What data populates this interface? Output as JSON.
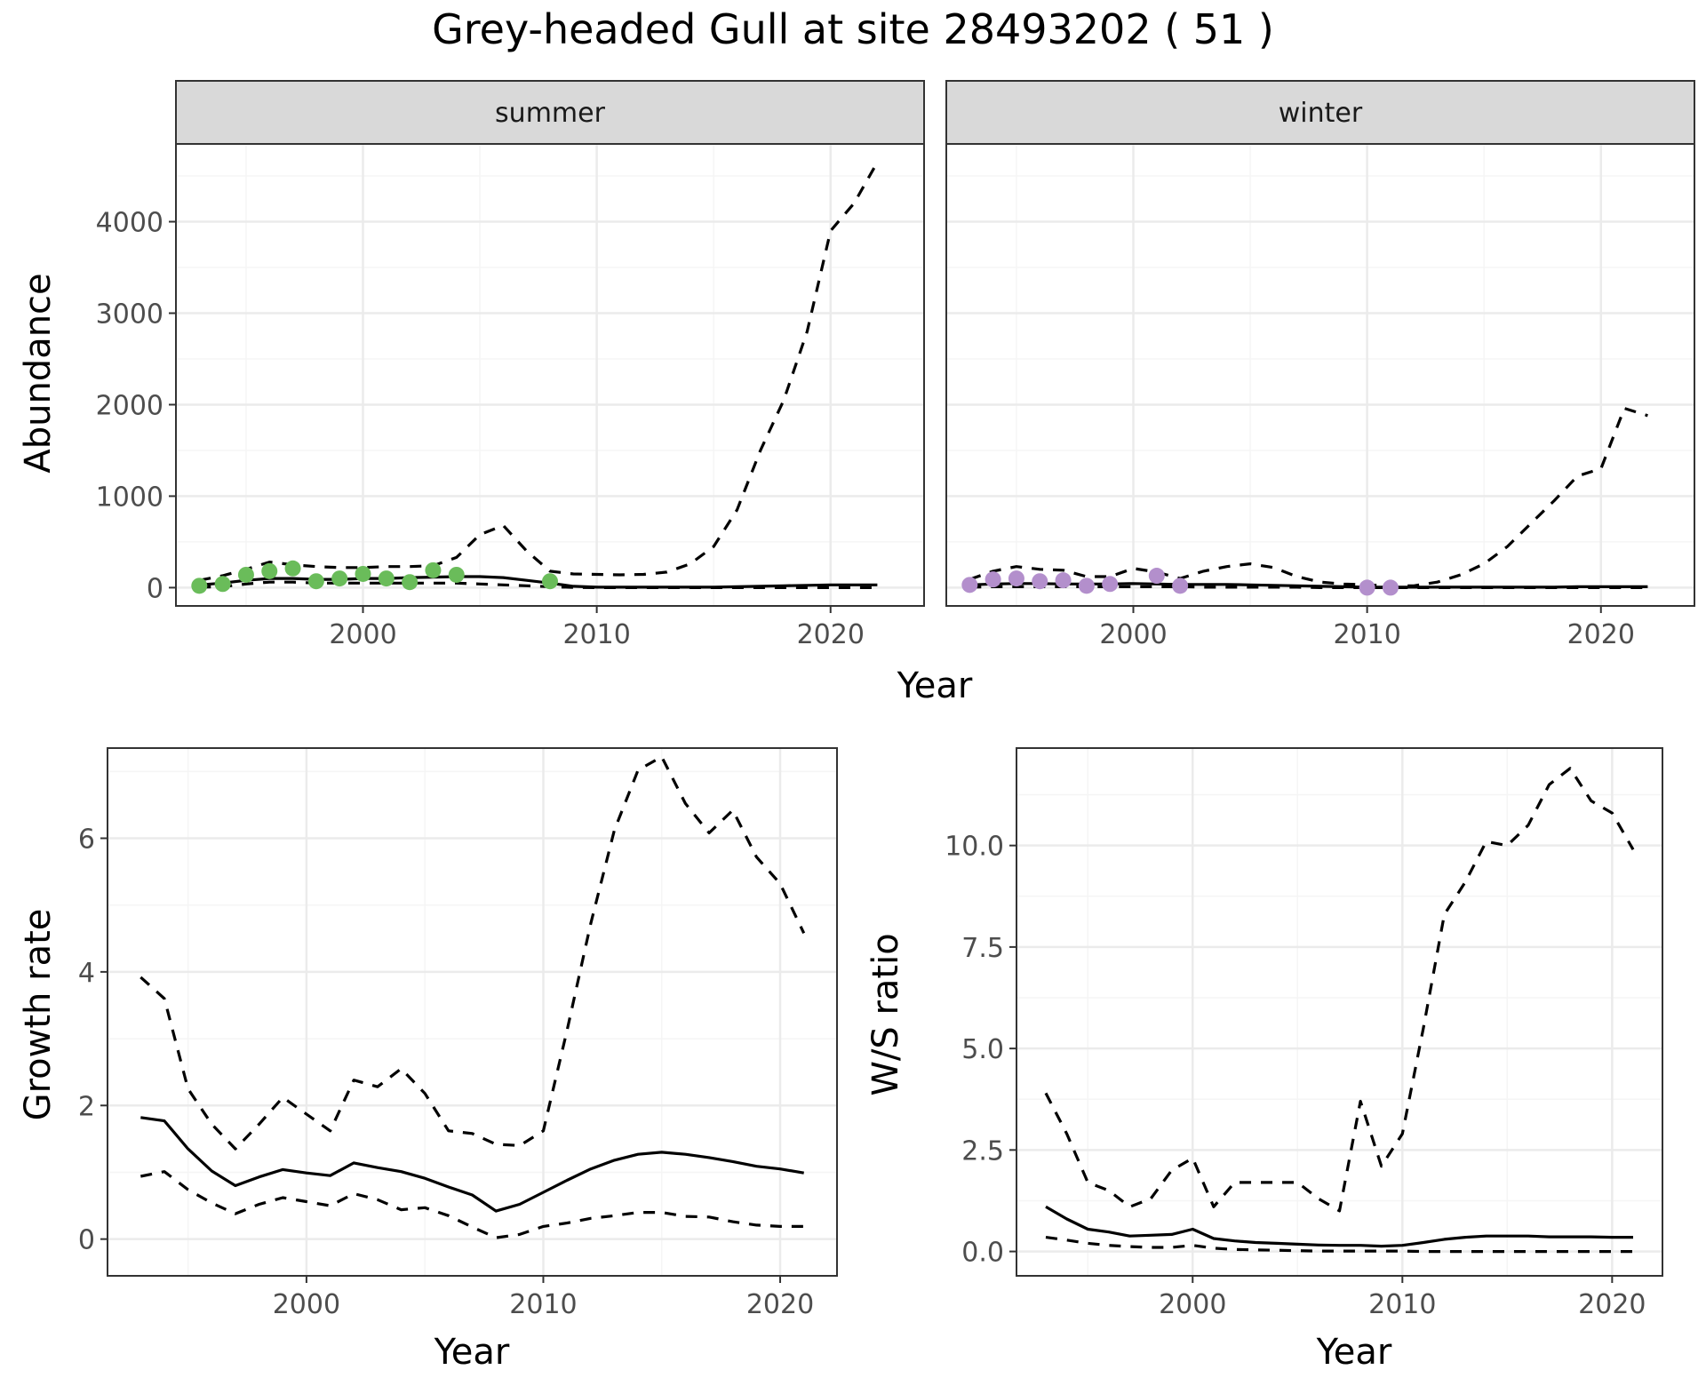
{
  "title": "Grey-headed Gull at site 28493202 ( 51 )",
  "colors": {
    "summer_points": "#6abc5a",
    "winter_points": "#b38fcc",
    "line": "#000000",
    "strip_bg": "#d9d9d9",
    "grid_major": "#ebebeb",
    "grid_minor": "#f5f5f5"
  },
  "chart_data": [
    {
      "type": "line",
      "panel": "summer",
      "strip_label": "summer",
      "ylabel": "Abundance",
      "xlabel": "Year",
      "xlim": [
        1992,
        2024
      ],
      "ylim": [
        -200,
        4850
      ],
      "xticks": [
        2000,
        2010,
        2020
      ],
      "yticks": [
        0,
        1000,
        2000,
        3000,
        4000
      ],
      "grid": true,
      "series": [
        {
          "role": "estimate",
          "style": "solid",
          "x": [
            1993,
            1994,
            1995,
            1996,
            1997,
            1998,
            1999,
            2000,
            2001,
            2002,
            2003,
            2004,
            2005,
            2006,
            2007,
            2008,
            2009,
            2010,
            2011,
            2012,
            2013,
            2014,
            2015,
            2016,
            2017,
            2018,
            2019,
            2020,
            2021,
            2022
          ],
          "y": [
            30,
            50,
            80,
            100,
            100,
            90,
            90,
            100,
            100,
            110,
            115,
            120,
            120,
            110,
            80,
            50,
            15,
            5,
            5,
            5,
            5,
            5,
            5,
            10,
            15,
            20,
            25,
            30,
            30,
            30
          ]
        },
        {
          "role": "upper",
          "style": "dashed",
          "x": [
            1993,
            1994,
            1995,
            1996,
            1997,
            1998,
            1999,
            2000,
            2001,
            2002,
            2003,
            2004,
            2005,
            2006,
            2007,
            2008,
            2009,
            2010,
            2011,
            2012,
            2013,
            2014,
            2015,
            2016,
            2017,
            2018,
            2019,
            2020,
            2021,
            2022
          ],
          "y": [
            80,
            130,
            200,
            280,
            250,
            230,
            220,
            220,
            230,
            230,
            240,
            330,
            580,
            680,
            400,
            180,
            150,
            145,
            140,
            145,
            170,
            260,
            450,
            850,
            1500,
            2050,
            2800,
            3900,
            4200,
            4650
          ]
        },
        {
          "role": "lower",
          "style": "dashed",
          "x": [
            1993,
            1994,
            1995,
            1996,
            1997,
            1998,
            1999,
            2000,
            2001,
            2002,
            2003,
            2004,
            2005,
            2006,
            2007,
            2008,
            2009,
            2010,
            2011,
            2012,
            2013,
            2014,
            2015,
            2016,
            2017,
            2018,
            2019,
            2020,
            2021,
            2022
          ],
          "y": [
            5,
            10,
            40,
            60,
            60,
            50,
            50,
            50,
            50,
            50,
            50,
            50,
            40,
            30,
            20,
            10,
            3,
            0,
            0,
            0,
            0,
            0,
            0,
            0,
            0,
            0,
            0,
            0,
            0,
            0
          ]
        },
        {
          "role": "observed",
          "style": "points",
          "x": [
            1993,
            1994,
            1995,
            1996,
            1997,
            1998,
            1999,
            2000,
            2001,
            2002,
            2003,
            2004,
            2008
          ],
          "y": [
            20,
            40,
            140,
            180,
            210,
            70,
            100,
            150,
            100,
            60,
            190,
            140,
            70
          ]
        }
      ]
    },
    {
      "type": "line",
      "panel": "winter",
      "strip_label": "winter",
      "ylabel": "",
      "xlabel": "Year",
      "xlim": [
        1992,
        2024
      ],
      "ylim": [
        -200,
        4850
      ],
      "xticks": [
        2000,
        2010,
        2020
      ],
      "yticks": [
        0,
        1000,
        2000,
        3000,
        4000
      ],
      "grid": true,
      "series": [
        {
          "role": "estimate",
          "style": "solid",
          "x": [
            1993,
            1994,
            1995,
            1996,
            1997,
            1998,
            1999,
            2000,
            2001,
            2002,
            2003,
            2004,
            2005,
            2006,
            2007,
            2008,
            2009,
            2010,
            2011,
            2012,
            2013,
            2014,
            2015,
            2016,
            2017,
            2018,
            2019,
            2020,
            2021,
            2022
          ],
          "y": [
            30,
            40,
            45,
            45,
            40,
            40,
            40,
            45,
            40,
            35,
            35,
            35,
            30,
            25,
            20,
            15,
            10,
            5,
            5,
            5,
            5,
            5,
            5,
            5,
            5,
            5,
            10,
            10,
            10,
            10
          ]
        },
        {
          "role": "upper",
          "style": "dashed",
          "x": [
            1993,
            1994,
            1995,
            1996,
            1997,
            1998,
            1999,
            2000,
            2001,
            2002,
            2003,
            2004,
            2005,
            2006,
            2007,
            2008,
            2009,
            2010,
            2011,
            2012,
            2013,
            2014,
            2015,
            2016,
            2017,
            2018,
            2019,
            2020,
            2021,
            2022
          ],
          "y": [
            90,
            180,
            230,
            200,
            190,
            120,
            120,
            210,
            170,
            100,
            180,
            230,
            260,
            220,
            120,
            60,
            40,
            30,
            20,
            20,
            60,
            140,
            260,
            450,
            700,
            950,
            1220,
            1300,
            1960,
            1880
          ]
        },
        {
          "role": "lower",
          "style": "dashed",
          "x": [
            1993,
            1994,
            1995,
            1996,
            1997,
            1998,
            1999,
            2000,
            2001,
            2002,
            2003,
            2004,
            2005,
            2006,
            2007,
            2008,
            2009,
            2010,
            2011,
            2012,
            2013,
            2014,
            2015,
            2016,
            2017,
            2018,
            2019,
            2020,
            2021,
            2022
          ],
          "y": [
            5,
            10,
            10,
            10,
            10,
            10,
            10,
            10,
            10,
            10,
            5,
            5,
            5,
            5,
            5,
            0,
            0,
            0,
            0,
            0,
            0,
            0,
            0,
            0,
            0,
            0,
            0,
            0,
            0,
            0
          ]
        },
        {
          "role": "observed",
          "style": "points",
          "x": [
            1993,
            1994,
            1995,
            1996,
            1997,
            1998,
            1999,
            2001,
            2002,
            2010,
            2011
          ],
          "y": [
            30,
            90,
            100,
            70,
            80,
            20,
            40,
            130,
            20,
            0,
            0
          ]
        }
      ]
    },
    {
      "type": "line",
      "panel": "growth",
      "ylabel": "Growth rate",
      "xlabel": "Year",
      "xlim": [
        1991.6,
        2022.4
      ],
      "ylim": [
        -0.55,
        7.35
      ],
      "xticks": [
        2000,
        2010,
        2020
      ],
      "yticks": [
        0,
        2,
        4,
        6
      ],
      "grid": true,
      "series": [
        {
          "role": "estimate",
          "style": "solid",
          "x": [
            1993,
            1994,
            1995,
            1996,
            1997,
            1998,
            1999,
            2000,
            2001,
            2002,
            2003,
            2004,
            2005,
            2006,
            2007,
            2008,
            2009,
            2010,
            2011,
            2012,
            2013,
            2014,
            2015,
            2016,
            2017,
            2018,
            2019,
            2020,
            2021
          ],
          "y": [
            1.82,
            1.77,
            1.35,
            1.02,
            0.8,
            0.93,
            1.04,
            0.99,
            0.95,
            1.14,
            1.07,
            1.01,
            0.91,
            0.78,
            0.66,
            0.42,
            0.52,
            0.7,
            0.88,
            1.05,
            1.18,
            1.27,
            1.3,
            1.27,
            1.22,
            1.16,
            1.09,
            1.05,
            0.99
          ]
        },
        {
          "role": "upper",
          "style": "dashed",
          "x": [
            1993,
            1994,
            1995,
            1996,
            1997,
            1998,
            1999,
            2000,
            2001,
            2002,
            2003,
            2004,
            2005,
            2006,
            2007,
            2008,
            2009,
            2010,
            2011,
            2012,
            2013,
            2014,
            2015,
            2016,
            2017,
            2018,
            2019,
            2020,
            2021
          ],
          "y": [
            3.92,
            3.6,
            2.25,
            1.72,
            1.35,
            1.72,
            2.12,
            1.87,
            1.62,
            2.38,
            2.28,
            2.55,
            2.18,
            1.62,
            1.58,
            1.42,
            1.4,
            1.62,
            3.12,
            4.72,
            6.12,
            7.02,
            7.22,
            6.52,
            6.08,
            6.42,
            5.72,
            5.32,
            4.58
          ]
        },
        {
          "role": "lower",
          "style": "dashed",
          "x": [
            1993,
            1994,
            1995,
            1996,
            1997,
            1998,
            1999,
            2000,
            2001,
            2002,
            2003,
            2004,
            2005,
            2006,
            2007,
            2008,
            2009,
            2010,
            2011,
            2012,
            2013,
            2014,
            2015,
            2016,
            2017,
            2018,
            2019,
            2020,
            2021
          ],
          "y": [
            0.94,
            1.01,
            0.74,
            0.54,
            0.38,
            0.52,
            0.62,
            0.56,
            0.5,
            0.68,
            0.59,
            0.44,
            0.47,
            0.35,
            0.18,
            0.02,
            0.07,
            0.19,
            0.24,
            0.31,
            0.35,
            0.4,
            0.4,
            0.34,
            0.33,
            0.26,
            0.21,
            0.19,
            0.19
          ]
        }
      ]
    },
    {
      "type": "line",
      "panel": "ws_ratio",
      "ylabel": "W/S ratio",
      "xlabel": "Year",
      "xlim": [
        1991.6,
        2022.4
      ],
      "ylim": [
        -0.6,
        12.4
      ],
      "xticks": [
        2000,
        2010,
        2020
      ],
      "yticks": [
        0.0,
        2.5,
        5.0,
        7.5,
        10.0
      ],
      "ytick_labels": [
        "0.0",
        "2.5",
        "5.0",
        "7.5",
        "10.0"
      ],
      "grid": true,
      "series": [
        {
          "role": "estimate",
          "style": "solid",
          "x": [
            1993,
            1994,
            1995,
            1996,
            1997,
            1998,
            1999,
            2000,
            2001,
            2002,
            2003,
            2004,
            2005,
            2006,
            2007,
            2008,
            2009,
            2010,
            2011,
            2012,
            2013,
            2014,
            2015,
            2016,
            2017,
            2018,
            2019,
            2020,
            2021
          ],
          "y": [
            1.1,
            0.8,
            0.55,
            0.48,
            0.38,
            0.4,
            0.42,
            0.55,
            0.32,
            0.26,
            0.22,
            0.2,
            0.18,
            0.16,
            0.15,
            0.15,
            0.13,
            0.15,
            0.22,
            0.3,
            0.35,
            0.38,
            0.38,
            0.38,
            0.36,
            0.36,
            0.36,
            0.35,
            0.35
          ]
        },
        {
          "role": "upper",
          "style": "dashed",
          "x": [
            1993,
            1994,
            1995,
            1996,
            1997,
            1998,
            1999,
            2000,
            2001,
            2002,
            2003,
            2004,
            2005,
            2006,
            2007,
            2008,
            2009,
            2010,
            2011,
            2012,
            2013,
            2014,
            2015,
            2016,
            2017,
            2018,
            2019,
            2020,
            2021
          ],
          "y": [
            3.9,
            2.9,
            1.7,
            1.5,
            1.1,
            1.3,
            2.0,
            2.3,
            1.1,
            1.7,
            1.7,
            1.7,
            1.7,
            1.3,
            1.0,
            3.7,
            2.1,
            2.9,
            5.5,
            8.3,
            9.1,
            10.1,
            10.0,
            10.5,
            11.5,
            11.9,
            11.1,
            10.8,
            9.9
          ]
        },
        {
          "role": "lower",
          "style": "dashed",
          "x": [
            1993,
            1994,
            1995,
            1996,
            1997,
            1998,
            1999,
            2000,
            2001,
            2002,
            2003,
            2004,
            2005,
            2006,
            2007,
            2008,
            2009,
            2010,
            2011,
            2012,
            2013,
            2014,
            2015,
            2016,
            2017,
            2018,
            2019,
            2020,
            2021
          ],
          "y": [
            0.35,
            0.28,
            0.2,
            0.15,
            0.12,
            0.1,
            0.1,
            0.15,
            0.08,
            0.05,
            0.04,
            0.03,
            0.02,
            0.01,
            0.01,
            0.01,
            0.01,
            0.01,
            0.0,
            0.0,
            0.0,
            0.0,
            0.0,
            0.0,
            0.0,
            0.0,
            0.0,
            0.0,
            0.0
          ]
        }
      ]
    }
  ]
}
